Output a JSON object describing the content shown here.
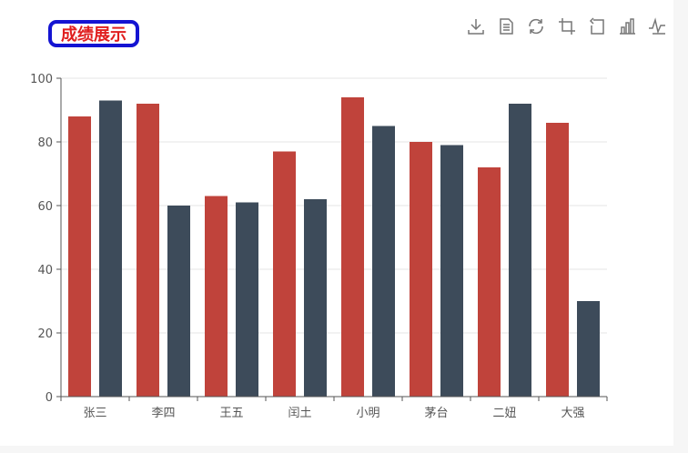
{
  "chart_title": "成绩展示",
  "toolbox": {
    "icons": [
      "save-as-image-icon",
      "data-view-icon",
      "restore-icon",
      "zoom-icon",
      "zoom-back-icon",
      "bar-icon",
      "line-icon"
    ]
  },
  "colors": {
    "series1": "#c0433b",
    "series2": "#3d4b5a",
    "axis": "#555555",
    "grid": "#e6e6e6",
    "tick_text": "#555555",
    "title_text": "#e01e1e",
    "title_border": "#1414d2"
  },
  "chart_data": {
    "type": "bar",
    "title": "成绩展示",
    "categories": [
      "张三",
      "李四",
      "王五",
      "闰土",
      "小明",
      "茅台",
      "二妞",
      "大强"
    ],
    "series": [
      {
        "values": [
          88,
          92,
          63,
          77,
          94,
          80,
          72,
          86
        ]
      },
      {
        "values": [
          93,
          60,
          61,
          62,
          85,
          79,
          92,
          30
        ]
      }
    ],
    "ylim": [
      0,
      100
    ],
    "yticks": [
      0,
      20,
      40,
      60,
      80,
      100
    ],
    "grid": true,
    "legend": "none"
  }
}
